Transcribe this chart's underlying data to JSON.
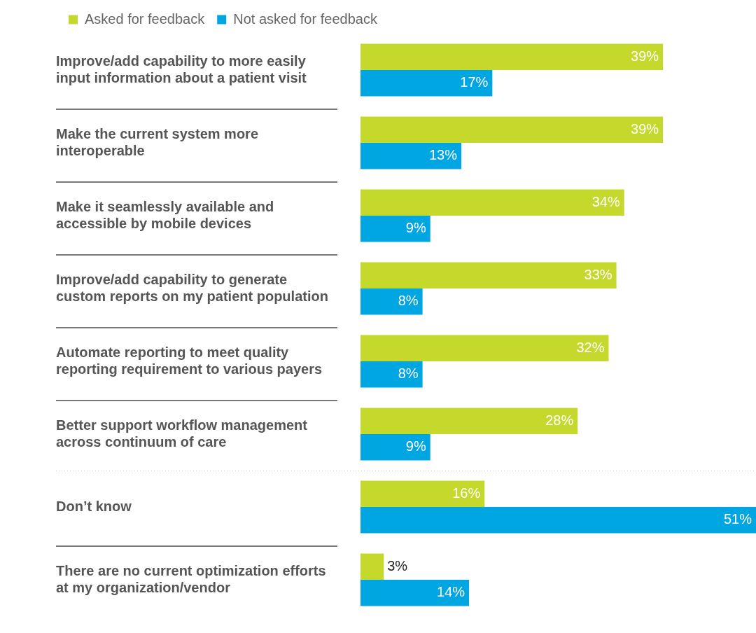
{
  "chart_data": {
    "type": "bar",
    "orientation": "horizontal",
    "legend": "top left",
    "tick_labels": "y",
    "categories": [
      "Improve/add capability to more easily input information about a patient visit",
      "Make the current system more interoperable",
      "Make it seamlessly available and accessible by mobile devices",
      "Improve/add capability to generate custom reports on my patient population",
      "Automate reporting to meet quality reporting requirement to various payers",
      "Better support workflow management across continuum of care",
      "Don’t know",
      "There are no current optimization efforts at my organization/vendor"
    ],
    "series": [
      {
        "name": "Asked for feedback",
        "color": "#c5d92d",
        "values": [
          39,
          39,
          34,
          33,
          32,
          28,
          16,
          3
        ],
        "value_labels": [
          "39%",
          "39%",
          "34%",
          "33%",
          "32%",
          "28%",
          "16%",
          "3%"
        ]
      },
      {
        "name": "Not asked for feedback",
        "color": "#00a6e2",
        "values": [
          17,
          13,
          9,
          8,
          8,
          9,
          51,
          14
        ],
        "value_labels": [
          "17%",
          "13%",
          "9%",
          "8%",
          "8%",
          "9%",
          "51%",
          "14%"
        ]
      }
    ]
  }
}
